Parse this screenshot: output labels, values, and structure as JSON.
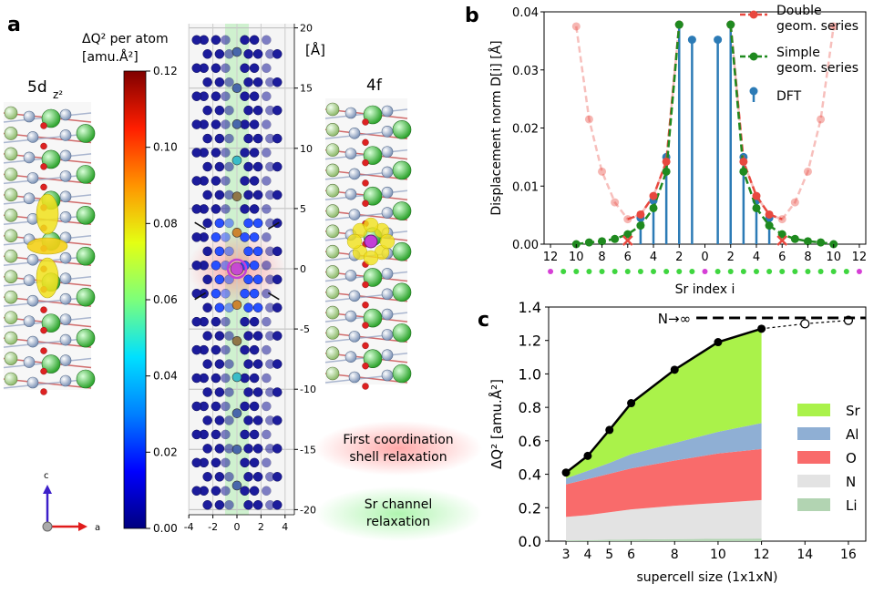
{
  "panel_labels": {
    "a": "a",
    "b": "b",
    "c": "c"
  },
  "panel_a": {
    "left_structure_label": "5d",
    "left_structure_sub": "z²",
    "right_structure_label": "4f",
    "colorbar": {
      "title_line1": "ΔQ² per atom",
      "title_line2": "[amu.Å²]",
      "ticks": [
        "0.00",
        "0.02",
        "0.04",
        "0.06",
        "0.08",
        "0.10",
        "0.12"
      ],
      "range": [
        0,
        0.12
      ],
      "colors": [
        "#00007f",
        "#0000ff",
        "#0080ff",
        "#00e0ff",
        "#7dff7a",
        "#e4ff13",
        "#ff9400",
        "#ff1e00",
        "#7f0000"
      ]
    },
    "y_axis_unit": "[Å]",
    "y_ticks": [
      "20",
      "15",
      "10",
      "5",
      "0",
      "-5",
      "-10",
      "-15",
      "-20"
    ],
    "x_ticks": [
      "-4",
      "-2",
      "0",
      "2",
      "4"
    ],
    "legend_red": "First coordination\nshell relaxation",
    "legend_green": "Sr channel\nrelaxation",
    "axes_labels": {
      "c": "c",
      "a": "a"
    }
  },
  "chart_data": [
    {
      "type": "line",
      "panel": "b",
      "xlabel": "Sr index i",
      "ylabel": "Displacement norm D[i] [Å]",
      "xlim": [
        -12.5,
        12.5
      ],
      "ylim": [
        0,
        0.04
      ],
      "x_ticks": [
        "12",
        "10",
        "8",
        "6",
        "4",
        "2",
        "0",
        "2",
        "4",
        "6",
        "8",
        "10",
        "12"
      ],
      "y_ticks": [
        "0.00",
        "0.01",
        "0.02",
        "0.03",
        "0.04"
      ],
      "series": [
        {
          "name": "Double geom. series",
          "color": "#e8483f",
          "x": [
            -10,
            -9,
            -8,
            -7,
            -6,
            -5,
            -4,
            -3,
            -2,
            2,
            3,
            4,
            5,
            6,
            7,
            8,
            9,
            10
          ],
          "values": [
            0.0375,
            0.0215,
            0.0125,
            0.0072,
            0.0043,
            0.0051,
            0.0083,
            0.0142,
            0.0378,
            0.0378,
            0.0142,
            0.0083,
            0.0051,
            0.0043,
            0.0072,
            0.0125,
            0.0215,
            0.0375
          ]
        },
        {
          "name": "Simple geom. series",
          "color": "#1f8a1f",
          "x": [
            -10,
            -9,
            -8,
            -7,
            -6,
            -5,
            -4,
            -3,
            -2,
            2,
            3,
            4,
            5,
            6,
            7,
            8,
            9,
            10
          ],
          "values": [
            0.0,
            0.0003,
            0.0005,
            0.0009,
            0.0017,
            0.0032,
            0.0062,
            0.0125,
            0.0378,
            0.0378,
            0.0125,
            0.0062,
            0.0032,
            0.0017,
            0.0009,
            0.0005,
            0.0003,
            0.0
          ]
        },
        {
          "name": "DFT",
          "color": "#2c7bb6",
          "x": [
            -5,
            -4,
            -3,
            -2,
            -1,
            1,
            2,
            3,
            4,
            5
          ],
          "values": [
            0.0045,
            0.0075,
            0.015,
            0.0378,
            0.0352,
            0.0352,
            0.0378,
            0.015,
            0.0075,
            0.0045
          ]
        }
      ]
    },
    {
      "type": "area",
      "panel": "c",
      "xlabel": "supercell size (1x1xN)",
      "ylabel": "ΔQ² [amu.Å²]",
      "x": [
        3,
        4,
        5,
        6,
        8,
        10,
        12
      ],
      "xlim": [
        2.2,
        16.8
      ],
      "ylim": [
        0,
        1.4
      ],
      "x_ticks": [
        "3",
        "4",
        "5",
        "6",
        "8",
        "10",
        "12",
        "14",
        "16"
      ],
      "y_ticks": [
        "0.0",
        "0.2",
        "0.4",
        "0.6",
        "0.8",
        "1.0",
        "1.2",
        "1.4"
      ],
      "series": [
        {
          "name": "Li",
          "color": "#b2d4b2",
          "values": [
            0.005,
            0.006,
            0.008,
            0.01,
            0.012,
            0.014,
            0.016
          ]
        },
        {
          "name": "N",
          "color": "#e3e3e3",
          "values": [
            0.14,
            0.15,
            0.165,
            0.18,
            0.2,
            0.215,
            0.23
          ]
        },
        {
          "name": "O",
          "color": "#f96b6b",
          "values": [
            0.195,
            0.215,
            0.23,
            0.245,
            0.27,
            0.295,
            0.305
          ]
        },
        {
          "name": "Al",
          "color": "#8fafd4",
          "values": [
            0.035,
            0.05,
            0.065,
            0.085,
            0.105,
            0.13,
            0.155
          ]
        },
        {
          "name": "Sr",
          "color": "#aaf24a",
          "values": [
            0.035,
            0.09,
            0.2,
            0.305,
            0.44,
            0.54,
            0.565
          ]
        }
      ],
      "total_line": {
        "x": [
          3,
          4,
          5,
          6,
          8,
          10,
          12
        ],
        "values": [
          0.41,
          0.51,
          0.665,
          0.825,
          1.025,
          1.19,
          1.27
        ]
      },
      "extrapolated": {
        "x": [
          12,
          14,
          16
        ],
        "values": [
          1.27,
          1.3,
          1.32
        ]
      },
      "limit_value": 1.335,
      "limit_label": "N→∞"
    }
  ]
}
